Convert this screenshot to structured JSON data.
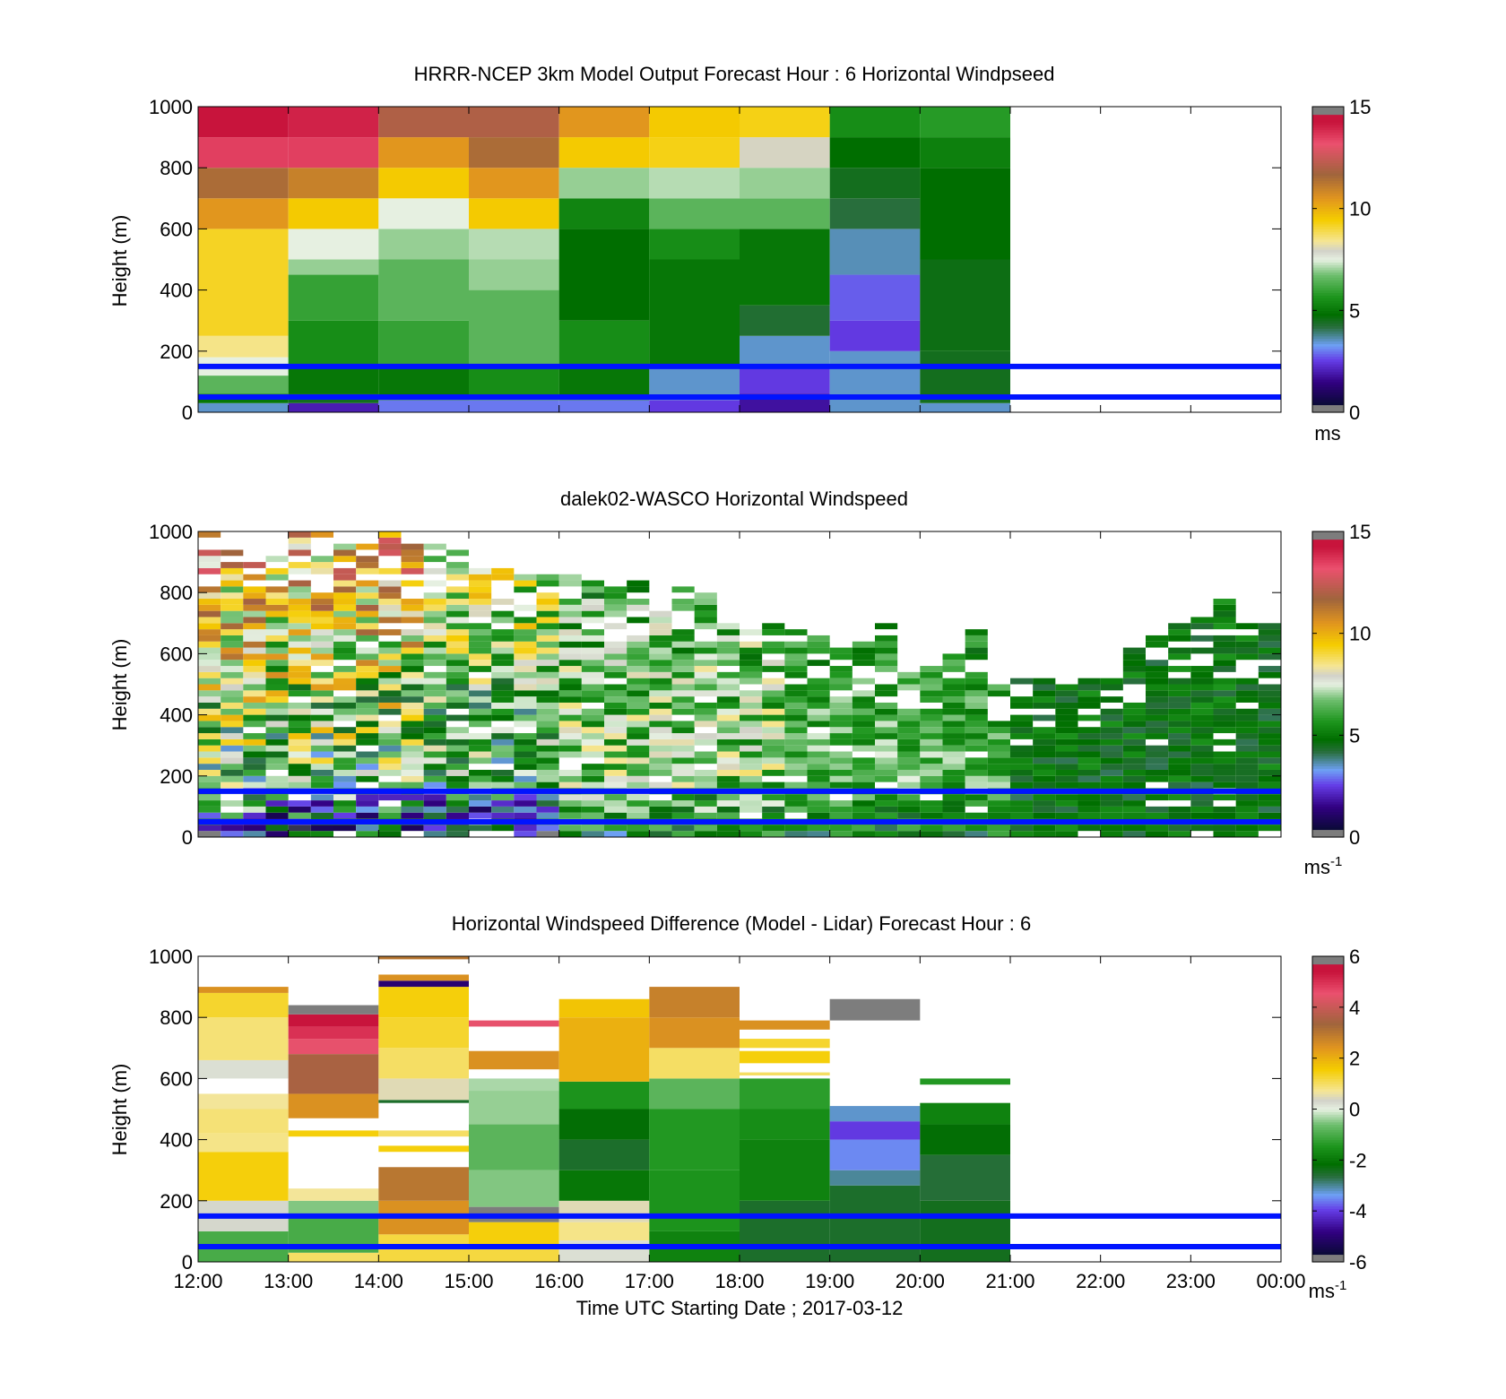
{
  "figure": {
    "xlabel": "Time UTC  Starting Date ; 2017-03-12",
    "xticks": [
      "12:00",
      "13:00",
      "14:00",
      "15:00",
      "16:00",
      "17:00",
      "18:00",
      "19:00",
      "20:00",
      "21:00",
      "22:00",
      "23:00",
      "00:00"
    ]
  },
  "chart_data": [
    {
      "type": "heatmap",
      "title": "HRRR-NCEP 3km Model Output   Forecast Hour : 6 Horizontal Windpseed",
      "ylabel": "Height (m)",
      "yticks": [
        "0",
        "200",
        "400",
        "600",
        "800",
        "1000"
      ],
      "ylim": [
        0,
        1000
      ],
      "x_hours_from_12utc": [
        0,
        12
      ],
      "colorbar": {
        "ticks": [
          "0",
          "5",
          "10",
          "15"
        ],
        "range": [
          0,
          15
        ],
        "unit": "ms",
        "unit_sup": ""
      },
      "reference_lines_m": [
        50,
        150
      ],
      "grid": false,
      "columns": [
        {
          "hour": 0,
          "segments": [
            [
              0,
              30,
              3.5
            ],
            [
              30,
              60,
              5
            ],
            [
              60,
              120,
              6.5
            ],
            [
              120,
              180,
              7.5
            ],
            [
              180,
              250,
              8.5
            ],
            [
              250,
              600,
              9.2
            ],
            [
              600,
              700,
              10.5
            ],
            [
              700,
              800,
              11.5
            ],
            [
              800,
              900,
              13.5
            ],
            [
              900,
              1000,
              14.5
            ]
          ]
        },
        {
          "hour": 1,
          "segments": [
            [
              0,
              30,
              2
            ],
            [
              30,
              60,
              4.5
            ],
            [
              60,
              150,
              5
            ],
            [
              150,
              300,
              5.5
            ],
            [
              300,
              450,
              6
            ],
            [
              450,
              500,
              7
            ],
            [
              500,
              600,
              7.5
            ],
            [
              600,
              700,
              9.5
            ],
            [
              700,
              800,
              11
            ],
            [
              800,
              900,
              13.5
            ],
            [
              900,
              1000,
              14
            ]
          ]
        },
        {
          "hour": 2,
          "segments": [
            [
              0,
              40,
              3
            ],
            [
              40,
              150,
              5
            ],
            [
              150,
              300,
              6
            ],
            [
              300,
              500,
              6.5
            ],
            [
              500,
              600,
              7
            ],
            [
              600,
              700,
              7.5
            ],
            [
              700,
              800,
              9.5
            ],
            [
              800,
              900,
              10.5
            ],
            [
              900,
              1000,
              12
            ]
          ]
        },
        {
          "hour": 3,
          "segments": [
            [
              0,
              40,
              3
            ],
            [
              40,
              150,
              5.5
            ],
            [
              150,
              400,
              6.5
            ],
            [
              400,
              500,
              7
            ],
            [
              500,
              600,
              7.2
            ],
            [
              600,
              700,
              9.5
            ],
            [
              700,
              800,
              10.5
            ],
            [
              800,
              900,
              11.5
            ],
            [
              900,
              1000,
              12
            ]
          ]
        },
        {
          "hour": 4,
          "segments": [
            [
              0,
              40,
              3
            ],
            [
              40,
              150,
              5
            ],
            [
              150,
              300,
              5.5
            ],
            [
              300,
              600,
              4.8
            ],
            [
              600,
              700,
              5.3
            ],
            [
              700,
              800,
              7
            ],
            [
              800,
              900,
              9.5
            ],
            [
              900,
              1000,
              10.5
            ]
          ]
        },
        {
          "hour": 5,
          "segments": [
            [
              0,
              40,
              2.5
            ],
            [
              40,
              150,
              3.5
            ],
            [
              150,
              500,
              5
            ],
            [
              500,
              600,
              5.5
            ],
            [
              600,
              700,
              6.5
            ],
            [
              700,
              800,
              7.2
            ],
            [
              800,
              900,
              9.3
            ],
            [
              900,
              1000,
              9.5
            ]
          ]
        },
        {
          "hour": 6,
          "segments": [
            [
              0,
              60,
              1.8
            ],
            [
              60,
              150,
              2.5
            ],
            [
              150,
              250,
              3.5
            ],
            [
              250,
              350,
              4.3
            ],
            [
              350,
              600,
              5
            ],
            [
              600,
              700,
              6.5
            ],
            [
              700,
              800,
              7
            ],
            [
              800,
              900,
              8
            ],
            [
              900,
              1000,
              9.3
            ]
          ]
        },
        {
          "hour": 7,
          "segments": [
            [
              0,
              200,
              3.5
            ],
            [
              200,
              300,
              2.5
            ],
            [
              300,
              450,
              2.8
            ],
            [
              450,
              600,
              3.6
            ],
            [
              600,
              700,
              4.2
            ],
            [
              700,
              800,
              4.5
            ],
            [
              800,
              900,
              4.8
            ],
            [
              900,
              1000,
              5.5
            ]
          ]
        },
        {
          "hour": 8,
          "segments": [
            [
              0,
              30,
              3.5
            ],
            [
              30,
              200,
              4.5
            ],
            [
              200,
              500,
              4.6
            ],
            [
              500,
              800,
              4.8
            ],
            [
              800,
              900,
              5.2
            ],
            [
              900,
              1000,
              5.8
            ]
          ]
        }
      ]
    },
    {
      "type": "heatmap",
      "title": "dalek02-WASCO  Horizontal Windspeed",
      "ylabel": "Height (m)",
      "yticks": [
        "0",
        "200",
        "400",
        "600",
        "800",
        "1000"
      ],
      "ylim": [
        0,
        1000
      ],
      "x_hours_from_12utc": [
        0,
        12
      ],
      "colorbar": {
        "ticks": [
          "0",
          "5",
          "10",
          "15"
        ],
        "range": [
          0,
          15
        ],
        "unit": "ms",
        "unit_sup": "-1"
      },
      "reference_lines_m": [
        50,
        150
      ],
      "grid": false,
      "profile_interval_h": 0.25,
      "max_valid_height_m": [
        1000,
        1000,
        980,
        960,
        990,
        990,
        1000,
        990,
        1000,
        960,
        950,
        930,
        880,
        870,
        860,
        870,
        860,
        830,
        820,
        840,
        780,
        820,
        800,
        700,
        700,
        700,
        680,
        680,
        620,
        640,
        700,
        560,
        560,
        600,
        700,
        540,
        520,
        520,
        520,
        540,
        580,
        620,
        660,
        700,
        720,
        780,
        720,
        700,
        700,
        680,
        640,
        620
      ],
      "tiers": [
        {
          "from_h": 0,
          "to_h": 2.5,
          "speed_low": 3,
          "speed_mid": 6,
          "speed_high": 10.5,
          "scatter": 3.2
        },
        {
          "from_h": 2.5,
          "to_h": 4.0,
          "speed_low": 2,
          "speed_mid": 5.5,
          "speed_high": 8.5,
          "scatter": 2.5
        },
        {
          "from_h": 4.0,
          "to_h": 6.5,
          "speed_low": 5,
          "speed_mid": 7,
          "speed_high": 6,
          "scatter": 1.8
        },
        {
          "from_h": 6.5,
          "to_h": 9.0,
          "speed_low": 5,
          "speed_mid": 6.5,
          "speed_high": 5,
          "scatter": 1.2
        },
        {
          "from_h": 9.0,
          "to_h": 12.0,
          "speed_low": 4.8,
          "speed_mid": 4.8,
          "speed_high": 5,
          "scatter": 0.8
        }
      ]
    },
    {
      "type": "heatmap",
      "title": "Horizontal Windspeed Difference (Model - Lidar) Forecast Hour : 6",
      "ylabel": "Height (m)",
      "yticks": [
        "0",
        "200",
        "400",
        "600",
        "800",
        "1000"
      ],
      "ylim": [
        0,
        1000
      ],
      "x_hours_from_12utc": [
        0,
        12
      ],
      "colorbar": {
        "ticks": [
          "-6",
          "-4",
          "-2",
          "0",
          "2",
          "4",
          "6"
        ],
        "range": [
          -6,
          6
        ],
        "unit": "ms",
        "unit_sup": "-1"
      },
      "reference_lines_m": [
        50,
        150
      ],
      "grid": false,
      "columns": [
        {
          "hour": 0,
          "segments": [
            [
              0,
              100,
              -1
            ],
            [
              100,
              200,
              0.3
            ],
            [
              200,
              360,
              1.5
            ],
            [
              360,
              420,
              0.8
            ],
            [
              420,
              500,
              0.9
            ],
            [
              500,
              550,
              0.7
            ],
            [
              600,
              660,
              0.2
            ],
            [
              660,
              800,
              0.9
            ],
            [
              800,
              880,
              1.3
            ],
            [
              880,
              900,
              2.5
            ]
          ]
        },
        {
          "hour": 1,
          "segments": [
            [
              0,
              30,
              1
            ],
            [
              30,
              150,
              -1
            ],
            [
              150,
              200,
              -0.5
            ],
            [
              200,
              240,
              0.7
            ],
            [
              410,
              430,
              1.5
            ],
            [
              470,
              550,
              2.5
            ],
            [
              550,
              680,
              3.5
            ],
            [
              680,
              730,
              4.5
            ],
            [
              730,
              770,
              5
            ],
            [
              770,
              810,
              5.5
            ],
            [
              810,
              840,
              6.5
            ]
          ]
        },
        {
          "hour": 2,
          "segments": [
            [
              0,
              90,
              1.2
            ],
            [
              90,
              200,
              2.5
            ],
            [
              200,
              310,
              3
            ],
            [
              360,
              380,
              1.5
            ],
            [
              410,
              430,
              1
            ],
            [
              520,
              530,
              -2.5
            ],
            [
              530,
              600,
              0.5
            ],
            [
              600,
              700,
              1
            ],
            [
              700,
              800,
              1.3
            ],
            [
              800,
              900,
              1.5
            ],
            [
              900,
              920,
              -5
            ],
            [
              920,
              940,
              2.5
            ],
            [
              990,
              1000,
              3
            ]
          ]
        },
        {
          "hour": 3,
          "segments": [
            [
              0,
              50,
              1.2
            ],
            [
              50,
              130,
              1.5
            ],
            [
              130,
              180,
              6.5
            ],
            [
              180,
              300,
              -0.5
            ],
            [
              300,
              450,
              -0.8
            ],
            [
              450,
              560,
              -0.4
            ],
            [
              560,
              600,
              -0.3
            ],
            [
              630,
              690,
              2.5
            ],
            [
              770,
              790,
              4.5
            ]
          ]
        },
        {
          "hour": 4,
          "segments": [
            [
              0,
              70,
              0.2
            ],
            [
              70,
              130,
              0.8
            ],
            [
              130,
              200,
              0.5
            ],
            [
              200,
              300,
              -2
            ],
            [
              300,
              400,
              -2.5
            ],
            [
              400,
              500,
              -2.2
            ],
            [
              500,
              590,
              -1.5
            ],
            [
              590,
              800,
              2
            ],
            [
              800,
              860,
              1.7
            ]
          ]
        },
        {
          "hour": 5,
          "segments": [
            [
              0,
              100,
              -1.8
            ],
            [
              100,
              300,
              -1.5
            ],
            [
              300,
              500,
              -1.4
            ],
            [
              500,
              600,
              -0.8
            ],
            [
              600,
              700,
              1
            ],
            [
              700,
              800,
              2.5
            ],
            [
              800,
              900,
              2.8
            ]
          ]
        },
        {
          "hour": 6,
          "segments": [
            [
              0,
              200,
              -2.5
            ],
            [
              200,
              400,
              -1.8
            ],
            [
              400,
              500,
              -1.6
            ],
            [
              500,
              600,
              -1.3
            ],
            [
              610,
              620,
              1
            ],
            [
              650,
              690,
              1.5
            ],
            [
              700,
              730,
              1.3
            ],
            [
              760,
              790,
              2.5
            ]
          ]
        },
        {
          "hour": 7,
          "segments": [
            [
              0,
              250,
              -2.5
            ],
            [
              250,
              300,
              -3
            ],
            [
              300,
              400,
              -3.5
            ],
            [
              400,
              460,
              -4
            ],
            [
              460,
              510,
              -3.2
            ],
            [
              790,
              860,
              8
            ]
          ]
        },
        {
          "hour": 8,
          "segments": [
            [
              0,
              200,
              -2.4
            ],
            [
              200,
              350,
              -2.6
            ],
            [
              350,
              450,
              -2.2
            ],
            [
              450,
              520,
              -1.8
            ],
            [
              580,
              600,
              -1.4
            ]
          ]
        }
      ]
    }
  ]
}
